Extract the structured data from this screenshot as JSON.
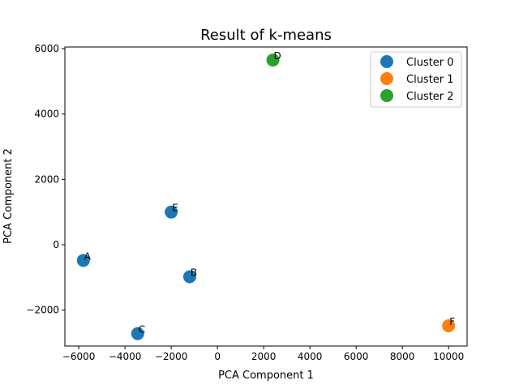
{
  "chart_data": {
    "type": "scatter",
    "title": "Result of k-means",
    "xlabel": "PCA Component 1",
    "ylabel": "PCA Component 2",
    "xlim": [
      -6600,
      10800
    ],
    "ylim": [
      -3100,
      6050
    ],
    "xticks": [
      -6000,
      -4000,
      -2000,
      0,
      2000,
      4000,
      6000,
      8000,
      10000
    ],
    "xtick_labels": [
      "−6000",
      "−4000",
      "−2000",
      "0",
      "2000",
      "4000",
      "6000",
      "8000",
      "10000"
    ],
    "yticks": [
      -2000,
      0,
      2000,
      4000,
      6000
    ],
    "ytick_labels": [
      "−2000",
      "0",
      "2000",
      "4000",
      "6000"
    ],
    "grid": false,
    "legend_position": "top-right",
    "series": [
      {
        "name": "Cluster 0",
        "color": "#1f77b4",
        "points": [
          {
            "label": "A",
            "x": -5800,
            "y": -480
          },
          {
            "label": "B",
            "x": -1200,
            "y": -980
          },
          {
            "label": "C",
            "x": -3450,
            "y": -2720
          },
          {
            "label": "E",
            "x": -2000,
            "y": 1000
          }
        ]
      },
      {
        "name": "Cluster 1",
        "color": "#ff7f0e",
        "points": [
          {
            "label": "F",
            "x": 10000,
            "y": -2480
          }
        ]
      },
      {
        "name": "Cluster 2",
        "color": "#2ca02c",
        "points": [
          {
            "label": "D",
            "x": 2400,
            "y": 5650
          }
        ]
      }
    ]
  }
}
